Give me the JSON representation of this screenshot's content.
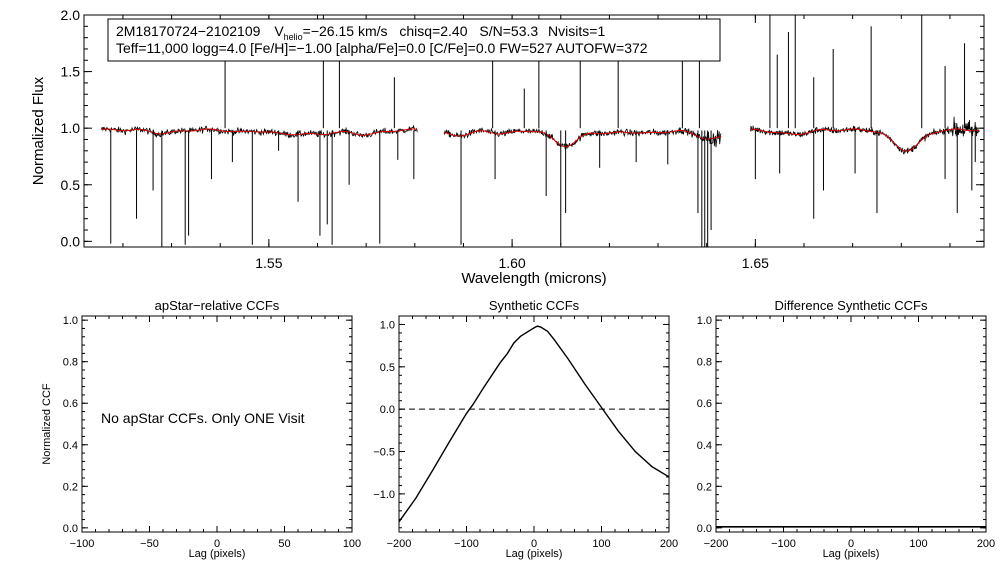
{
  "chart_data": [
    {
      "id": "spectrum",
      "type": "line",
      "xlabel": "Wavelength (microns)",
      "ylabel": "Normalized Flux",
      "xlim": [
        1.512,
        1.697
      ],
      "ylim": [
        -0.05,
        2.0
      ],
      "xticks": [
        {
          "v": 1.55,
          "label": "1.55"
        },
        {
          "v": 1.6,
          "label": "1.60"
        },
        {
          "v": 1.65,
          "label": "1.65"
        }
      ],
      "yticks": [
        {
          "v": 0.0,
          "label": "0.0"
        },
        {
          "v": 0.5,
          "label": "0.5"
        },
        {
          "v": 1.0,
          "label": "1.0"
        },
        {
          "v": 1.5,
          "label": "1.5"
        },
        {
          "v": 2.0,
          "label": "2.0"
        }
      ],
      "info_line1": {
        "star_id": "2M18170724−2102109",
        "v_symbol": "V",
        "v_subscript": "helio",
        "v_value": "=−26.15 km/s",
        "chisq": "chisq=2.40",
        "snr": "S/N=53.3",
        "nvisits": "Nvisits=1"
      },
      "info_line2": "Teff=11,000 logg=4.0 [Fe/H]=−1.00 [alpha/Fe]=0.0 [C/Fe]=0.0 FW=527 AUTOFW=372",
      "chips": [
        [
          1.5155,
          1.5805
        ],
        [
          1.586,
          1.643
        ],
        [
          1.649,
          1.696
        ]
      ],
      "observed_color": "#000000",
      "model_color": "#e00000",
      "model_absorption": [
        {
          "center": 1.5285,
          "depth": 0.03,
          "width": 0.0025
        },
        {
          "center": 1.5445,
          "depth": 0.02,
          "width": 0.002
        },
        {
          "center": 1.5525,
          "depth": 0.03,
          "width": 0.0025
        },
        {
          "center": 1.5595,
          "depth": 0.04,
          "width": 0.0035
        },
        {
          "center": 1.57,
          "depth": 0.04,
          "width": 0.003
        },
        {
          "center": 1.5885,
          "depth": 0.05,
          "width": 0.0025
        },
        {
          "center": 1.5982,
          "depth": 0.03,
          "width": 0.003
        },
        {
          "center": 1.611,
          "depth": 0.14,
          "width": 0.0026
        },
        {
          "center": 1.62,
          "depth": 0.03,
          "width": 0.0025
        },
        {
          "center": 1.6282,
          "depth": 0.03,
          "width": 0.003
        },
        {
          "center": 1.641,
          "depth": 0.08,
          "width": 0.003
        },
        {
          "center": 1.6575,
          "depth": 0.04,
          "width": 0.003
        },
        {
          "center": 1.6811,
          "depth": 0.18,
          "width": 0.0028
        }
      ],
      "spikes_down": [
        {
          "x": 1.5175,
          "y": -0.02
        },
        {
          "x": 1.5228,
          "y": 0.2
        },
        {
          "x": 1.5262,
          "y": 0.45
        },
        {
          "x": 1.528,
          "y": -0.05
        },
        {
          "x": 1.5328,
          "y": -0.03
        },
        {
          "x": 1.5335,
          "y": 0.05
        },
        {
          "x": 1.5382,
          "y": 0.55
        },
        {
          "x": 1.5425,
          "y": 0.7
        },
        {
          "x": 1.5466,
          "y": -0.03
        },
        {
          "x": 1.552,
          "y": 0.8
        },
        {
          "x": 1.556,
          "y": 0.35
        },
        {
          "x": 1.5605,
          "y": 0.05
        },
        {
          "x": 1.562,
          "y": 0.15
        },
        {
          "x": 1.563,
          "y": -0.03
        },
        {
          "x": 1.5665,
          "y": 0.5
        },
        {
          "x": 1.5728,
          "y": -0.02
        },
        {
          "x": 1.5765,
          "y": 0.72
        },
        {
          "x": 1.5798,
          "y": 0.55
        },
        {
          "x": 1.5895,
          "y": -0.03
        },
        {
          "x": 1.5965,
          "y": 0.55
        },
        {
          "x": 1.607,
          "y": 0.4
        },
        {
          "x": 1.61,
          "y": -0.03
        },
        {
          "x": 1.611,
          "y": 0.25
        },
        {
          "x": 1.618,
          "y": 0.65
        },
        {
          "x": 1.6255,
          "y": 0.7
        },
        {
          "x": 1.632,
          "y": 0.68
        },
        {
          "x": 1.6382,
          "y": 0.25
        },
        {
          "x": 1.639,
          "y": -0.05
        },
        {
          "x": 1.6396,
          "y": -0.05
        },
        {
          "x": 1.6402,
          "y": -0.05
        },
        {
          "x": 1.6409,
          "y": 0.1
        },
        {
          "x": 1.65,
          "y": 0.55
        },
        {
          "x": 1.655,
          "y": 0.6
        },
        {
          "x": 1.662,
          "y": 0.2
        },
        {
          "x": 1.664,
          "y": 0.45
        },
        {
          "x": 1.6705,
          "y": 0.6
        },
        {
          "x": 1.675,
          "y": 0.25
        },
        {
          "x": 1.689,
          "y": 0.55
        },
        {
          "x": 1.6915,
          "y": 0.25
        },
        {
          "x": 1.6945,
          "y": 0.45
        },
        {
          "x": 1.6952,
          "y": 0.7
        }
      ],
      "spikes_up": [
        {
          "x": 1.541,
          "y": 1.65
        },
        {
          "x": 1.5612,
          "y": 2.0
        },
        {
          "x": 1.5645,
          "y": 1.85
        },
        {
          "x": 1.5758,
          "y": 1.45
        },
        {
          "x": 1.596,
          "y": 1.65
        },
        {
          "x": 1.6025,
          "y": 1.35
        },
        {
          "x": 1.6055,
          "y": 2.0
        },
        {
          "x": 1.614,
          "y": 1.85
        },
        {
          "x": 1.6218,
          "y": 1.95
        },
        {
          "x": 1.635,
          "y": 1.75
        },
        {
          "x": 1.6385,
          "y": 2.0
        },
        {
          "x": 1.653,
          "y": 2.0
        },
        {
          "x": 1.6545,
          "y": 1.65
        },
        {
          "x": 1.6568,
          "y": 1.85
        },
        {
          "x": 1.6582,
          "y": 2.0
        },
        {
          "x": 1.662,
          "y": 1.45
        },
        {
          "x": 1.666,
          "y": 1.7
        },
        {
          "x": 1.6738,
          "y": 1.9
        },
        {
          "x": 1.6842,
          "y": 2.0
        },
        {
          "x": 1.689,
          "y": 1.55
        },
        {
          "x": 1.693,
          "y": 1.75
        }
      ],
      "noise_sigma": 0.028,
      "noise_sigma_red": 0.09
    },
    {
      "id": "ccf_apstar",
      "type": "line",
      "title": "apStar−relative CCFs",
      "xlabel": "Lag (pixels)",
      "ylabel": "Normalized CCF",
      "xlim": [
        -100,
        100
      ],
      "ylim": [
        -0.02,
        1.02
      ],
      "xticks": [
        {
          "v": -100,
          "label": "−100"
        },
        {
          "v": -50,
          "label": "−50"
        },
        {
          "v": 0,
          "label": "0"
        },
        {
          "v": 50,
          "label": "50"
        },
        {
          "v": 100,
          "label": "100"
        }
      ],
      "yticks": [
        {
          "v": 0.0,
          "label": "0.0"
        },
        {
          "v": 0.2,
          "label": "0.2"
        },
        {
          "v": 0.4,
          "label": "0.4"
        },
        {
          "v": 0.6,
          "label": "0.6"
        },
        {
          "v": 0.8,
          "label": "0.8"
        },
        {
          "v": 1.0,
          "label": "1.0"
        }
      ],
      "annotation": "No apStar CCFs.  Only ONE Visit",
      "series": []
    },
    {
      "id": "ccf_synthetic",
      "type": "line",
      "title": "Synthetic CCFs",
      "xlabel": "Lag (pixels)",
      "ylabel": "",
      "xlim": [
        -200,
        200
      ],
      "ylim": [
        -1.45,
        1.1
      ],
      "xticks": [
        {
          "v": -200,
          "label": "−200"
        },
        {
          "v": -100,
          "label": "−100"
        },
        {
          "v": 0,
          "label": "0"
        },
        {
          "v": 100,
          "label": "100"
        },
        {
          "v": 200,
          "label": "200"
        }
      ],
      "yticks": [
        {
          "v": -1.0,
          "label": "−1.0"
        },
        {
          "v": -0.5,
          "label": "−0.5"
        },
        {
          "v": 0.0,
          "label": "0.0"
        },
        {
          "v": 0.5,
          "label": "0.5"
        },
        {
          "v": 1.0,
          "label": "1.0"
        }
      ],
      "zero_line": 0.0,
      "series": [
        {
          "name": "synthetic",
          "x": [
            -200,
            -175,
            -150,
            -125,
            -100,
            -90,
            -75,
            -50,
            -40,
            -30,
            -20,
            -10,
            0,
            5,
            10,
            20,
            30,
            50,
            75,
            100,
            125,
            150,
            175,
            200
          ],
          "y": [
            -1.33,
            -1.05,
            -0.72,
            -0.38,
            -0.05,
            0.06,
            0.25,
            0.55,
            0.65,
            0.78,
            0.86,
            0.91,
            0.96,
            0.98,
            0.97,
            0.92,
            0.82,
            0.6,
            0.3,
            0.02,
            -0.26,
            -0.5,
            -0.68,
            -0.8
          ]
        }
      ]
    },
    {
      "id": "ccf_difference",
      "type": "line",
      "title": "Difference Synthetic CCFs",
      "xlabel": "Lag (pixels)",
      "ylabel": "",
      "xlim": [
        -200,
        200
      ],
      "ylim": [
        -0.02,
        1.02
      ],
      "xticks": [
        {
          "v": -200,
          "label": "−200"
        },
        {
          "v": -100,
          "label": "−100"
        },
        {
          "v": 0,
          "label": "0"
        },
        {
          "v": 100,
          "label": "100"
        },
        {
          "v": 200,
          "label": "200"
        }
      ],
      "yticks": [
        {
          "v": 0.0,
          "label": "0.0"
        },
        {
          "v": 0.2,
          "label": "0.2"
        },
        {
          "v": 0.4,
          "label": "0.4"
        },
        {
          "v": 0.6,
          "label": "0.6"
        },
        {
          "v": 0.8,
          "label": "0.8"
        },
        {
          "v": 1.0,
          "label": "1.0"
        }
      ],
      "series": [
        {
          "name": "difference",
          "x": [
            -200,
            200
          ],
          "y": [
            0.0,
            0.0
          ]
        }
      ]
    }
  ]
}
